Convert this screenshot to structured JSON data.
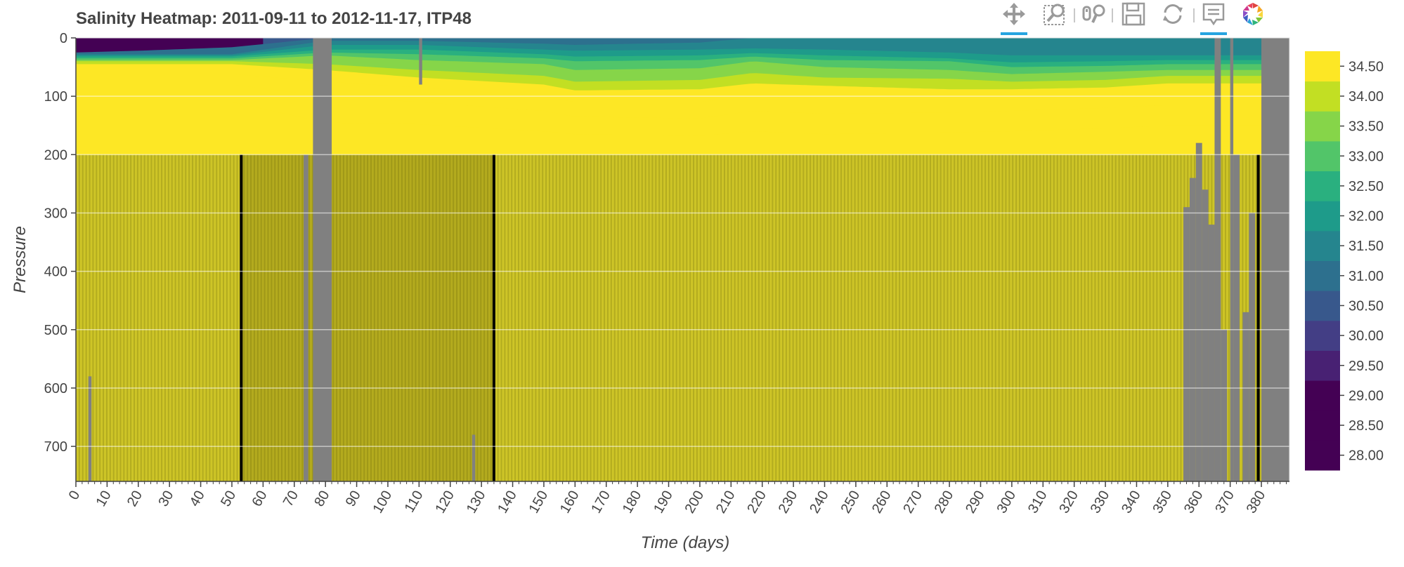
{
  "toolbar": {
    "tools": [
      {
        "name": "pan-tool",
        "icon": "pan-icon",
        "active": true
      },
      {
        "name": "box-zoom-tool",
        "icon": "box-zoom-icon",
        "active": false
      },
      {
        "name": "wheel-zoom-tool",
        "icon": "wheel-zoom-icon",
        "active": false
      },
      {
        "name": "save-tool",
        "icon": "save-icon",
        "active": false
      },
      {
        "name": "reset-tool",
        "icon": "reset-icon",
        "active": false
      },
      {
        "name": "hover-tool",
        "icon": "hover-tooltip-icon",
        "active": true
      },
      {
        "name": "bokeh-logo",
        "icon": "bokeh-logo-icon",
        "active": false
      }
    ]
  },
  "colors": {
    "palette": [
      "#440154",
      "#482173",
      "#433e85",
      "#38588c",
      "#2d708e",
      "#25858e",
      "#1e9b8a",
      "#2ab07f",
      "#52c569",
      "#86d549",
      "#c2df23",
      "#fde725"
    ],
    "background_deep": "#cec527",
    "missing": "#808080",
    "no_data_line": "#000000"
  },
  "chart_data": {
    "type": "heatmap",
    "title": "Salinity Heatmap: 2011-09-11 to 2012-11-17, ITP48",
    "xlabel": "Time (days)",
    "ylabel": "Pressure",
    "xlim": [
      0,
      389
    ],
    "ylim": [
      760,
      0
    ],
    "y_reversed": true,
    "x_ticks": [
      0,
      10,
      20,
      30,
      40,
      50,
      60,
      70,
      80,
      90,
      100,
      110,
      120,
      130,
      140,
      150,
      160,
      170,
      180,
      190,
      200,
      210,
      220,
      230,
      240,
      250,
      260,
      270,
      280,
      290,
      300,
      310,
      320,
      330,
      340,
      350,
      360,
      370,
      380
    ],
    "y_ticks": [
      0,
      100,
      200,
      300,
      400,
      500,
      600,
      700
    ],
    "colorbar": {
      "levels": [
        28.0,
        28.5,
        29.0,
        29.5,
        30.0,
        30.5,
        31.0,
        31.5,
        32.0,
        32.5,
        33.0,
        33.5,
        34.0,
        34.5
      ],
      "tick_labels": [
        "28.00",
        "28.50",
        "29.00",
        "29.50",
        "30.00",
        "30.50",
        "31.00",
        "31.50",
        "32.00",
        "32.50",
        "33.00",
        "33.50",
        "34.00",
        "34.50"
      ]
    },
    "layer_boundaries_pressure": {
      "days": [
        0,
        20,
        50,
        80,
        110,
        150,
        160,
        200,
        217,
        240,
        280,
        300,
        330,
        350
      ],
      "s29_0": [
        25,
        22,
        16,
        0,
        0,
        0,
        0,
        0,
        0,
        0,
        0,
        0,
        0,
        0
      ],
      "s30_0": [
        28,
        28,
        28,
        5,
        5,
        10,
        12,
        8,
        0,
        0,
        0,
        0,
        0,
        0
      ],
      "s30_5": [
        30,
        30,
        30,
        12,
        12,
        20,
        22,
        20,
        18,
        20,
        25,
        30,
        30,
        30
      ],
      "s31_0": [
        32,
        32,
        32,
        20,
        20,
        28,
        32,
        30,
        26,
        30,
        35,
        42,
        40,
        38
      ],
      "s31_5": [
        35,
        35,
        35,
        25,
        28,
        35,
        40,
        38,
        32,
        38,
        40,
        50,
        48,
        45
      ],
      "s32_0": [
        38,
        38,
        38,
        30,
        38,
        45,
        55,
        52,
        40,
        50,
        55,
        62,
        58,
        55
      ],
      "s32_5": [
        40,
        40,
        40,
        45,
        55,
        65,
        75,
        72,
        60,
        68,
        70,
        75,
        72,
        65
      ],
      "s33_0": [
        45,
        45,
        45,
        55,
        68,
        80,
        90,
        88,
        78,
        82,
        88,
        88,
        85,
        78
      ],
      "s33_5": [
        62,
        62,
        62,
        75,
        85,
        100,
        110,
        110,
        100,
        105,
        105,
        105,
        100,
        95
      ],
      "s34_0": [
        80,
        80,
        80,
        100,
        110,
        125,
        135,
        138,
        125,
        130,
        128,
        125,
        120,
        115
      ],
      "s34_5": [
        110,
        110,
        110,
        145,
        148,
        160,
        165,
        168,
        160,
        165,
        162,
        160,
        155,
        150
      ]
    },
    "no_data_lines_days": [
      53,
      134,
      379
    ],
    "missing_intervals": [
      {
        "x": [
          76,
          82
        ],
        "y": [
          0,
          760
        ]
      },
      {
        "x": [
          73,
          74.5
        ],
        "y": [
          200,
          760
        ]
      },
      {
        "x": [
          380,
          389
        ],
        "y": [
          0,
          760
        ]
      },
      {
        "x": [
          365,
          367
        ],
        "y": [
          0,
          760
        ]
      },
      {
        "x": [
          370,
          371
        ],
        "y": [
          0,
          760
        ]
      },
      {
        "x": [
          355,
          357
        ],
        "y": [
          290,
          760
        ]
      },
      {
        "x": [
          357,
          359
        ],
        "y": [
          240,
          760
        ]
      },
      {
        "x": [
          359,
          361
        ],
        "y": [
          180,
          760
        ]
      },
      {
        "x": [
          361,
          363
        ],
        "y": [
          260,
          760
        ]
      },
      {
        "x": [
          363,
          365
        ],
        "y": [
          320,
          760
        ]
      },
      {
        "x": [
          367,
          369
        ],
        "y": [
          500,
          760
        ]
      },
      {
        "x": [
          371,
          373
        ],
        "y": [
          200,
          760
        ]
      },
      {
        "x": [
          374,
          376
        ],
        "y": [
          470,
          760
        ]
      },
      {
        "x": [
          376,
          378
        ],
        "y": [
          300,
          760
        ]
      },
      {
        "x": [
          4,
          5
        ],
        "y": [
          580,
          760
        ]
      },
      {
        "x": [
          127,
          128
        ],
        "y": [
          680,
          760
        ]
      },
      {
        "x": [
          110,
          111
        ],
        "y": [
          0,
          80
        ]
      }
    ]
  }
}
